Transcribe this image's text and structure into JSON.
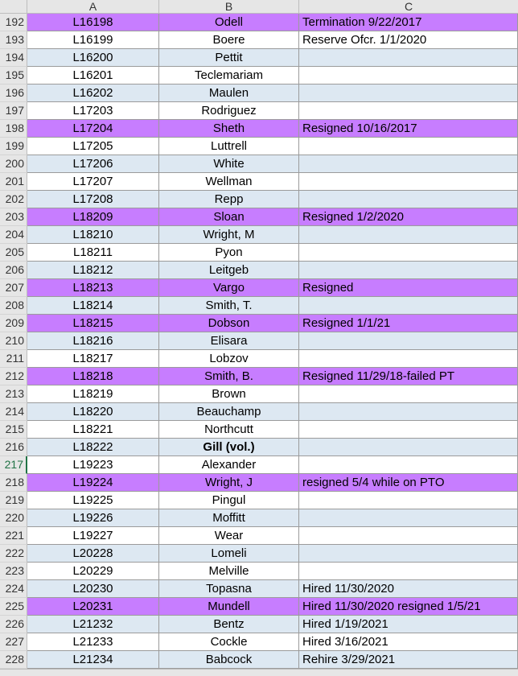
{
  "columns": [
    "A",
    "B",
    "C"
  ],
  "rows": [
    {
      "num": "192",
      "a": "L16198",
      "b": "Odell",
      "c": "Termination 9/22/2017",
      "hl": true
    },
    {
      "num": "193",
      "a": "L16199",
      "b": "Boere",
      "c": "Reserve Ofcr. 1/1/2020"
    },
    {
      "num": "194",
      "a": "L16200",
      "b": "Pettit",
      "c": ""
    },
    {
      "num": "195",
      "a": "L16201",
      "b": "Teclemariam",
      "c": ""
    },
    {
      "num": "196",
      "a": "L16202",
      "b": "Maulen",
      "c": ""
    },
    {
      "num": "197",
      "a": "L17203",
      "b": "Rodriguez",
      "c": ""
    },
    {
      "num": "198",
      "a": "L17204",
      "b": "Sheth",
      "c": "Resigned 10/16/2017",
      "hl": true
    },
    {
      "num": "199",
      "a": "L17205",
      "b": "Luttrell",
      "c": ""
    },
    {
      "num": "200",
      "a": "L17206",
      "b": "White",
      "c": ""
    },
    {
      "num": "201",
      "a": "L17207",
      "b": "Wellman",
      "c": ""
    },
    {
      "num": "202",
      "a": "L17208",
      "b": "Repp",
      "c": ""
    },
    {
      "num": "203",
      "a": "L18209",
      "b": "Sloan",
      "c": "Resigned 1/2/2020",
      "hl": true
    },
    {
      "num": "204",
      "a": "L18210",
      "b": "Wright, M",
      "c": ""
    },
    {
      "num": "205",
      "a": "L18211",
      "b": "Pyon",
      "c": ""
    },
    {
      "num": "206",
      "a": "L18212",
      "b": "Leitgeb",
      "c": ""
    },
    {
      "num": "207",
      "a": "L18213",
      "b": "Vargo",
      "c": "Resigned",
      "hl": true
    },
    {
      "num": "208",
      "a": "L18214",
      "b": "Smith, T.",
      "c": ""
    },
    {
      "num": "209",
      "a": "L18215",
      "b": "Dobson",
      "c": "Resigned 1/1/21",
      "hl": true
    },
    {
      "num": "210",
      "a": "L18216",
      "b": "Elisara",
      "c": ""
    },
    {
      "num": "211",
      "a": "L18217",
      "b": "Lobzov",
      "c": ""
    },
    {
      "num": "212",
      "a": "L18218",
      "b": "Smith, B.",
      "c": "Resigned 11/29/18-failed PT",
      "hl": true
    },
    {
      "num": "213",
      "a": "L18219",
      "b": "Brown",
      "c": ""
    },
    {
      "num": "214",
      "a": "L18220",
      "b": "Beauchamp",
      "c": ""
    },
    {
      "num": "215",
      "a": "L18221",
      "b": "Northcutt",
      "c": ""
    },
    {
      "num": "216",
      "a": "L18222",
      "b": "Gill (vol.)",
      "c": "",
      "bold": true
    },
    {
      "num": "217",
      "a": "L19223",
      "b": "Alexander",
      "c": "",
      "selected": true
    },
    {
      "num": "218",
      "a": "L19224",
      "b": "Wright, J",
      "c": "resigned 5/4 while on PTO",
      "hl": true
    },
    {
      "num": "219",
      "a": "L19225",
      "b": "Pingul",
      "c": ""
    },
    {
      "num": "220",
      "a": "L19226",
      "b": "Moffitt",
      "c": ""
    },
    {
      "num": "221",
      "a": "L19227",
      "b": "Wear",
      "c": ""
    },
    {
      "num": "222",
      "a": "L20228",
      "b": "Lomeli",
      "c": ""
    },
    {
      "num": "223",
      "a": "L20229",
      "b": "Melville",
      "c": ""
    },
    {
      "num": "224",
      "a": "L20230",
      "b": "Topasna",
      "c": "Hired 11/30/2020"
    },
    {
      "num": "225",
      "a": "L20231",
      "b": "Mundell",
      "c": "Hired 11/30/2020 resigned 1/5/21",
      "hl": true
    },
    {
      "num": "226",
      "a": "L21232",
      "b": "Bentz",
      "c": "Hired 1/19/2021"
    },
    {
      "num": "227",
      "a": "L21233",
      "b": "Cockle",
      "c": "Hired 3/16/2021"
    },
    {
      "num": "228",
      "a": "L21234",
      "b": "Babcock",
      "c": "Rehire 3/29/2021"
    }
  ],
  "colors": {
    "highlight": "#c77dff",
    "band": "#dde8f2",
    "selected_row": "#217346"
  }
}
